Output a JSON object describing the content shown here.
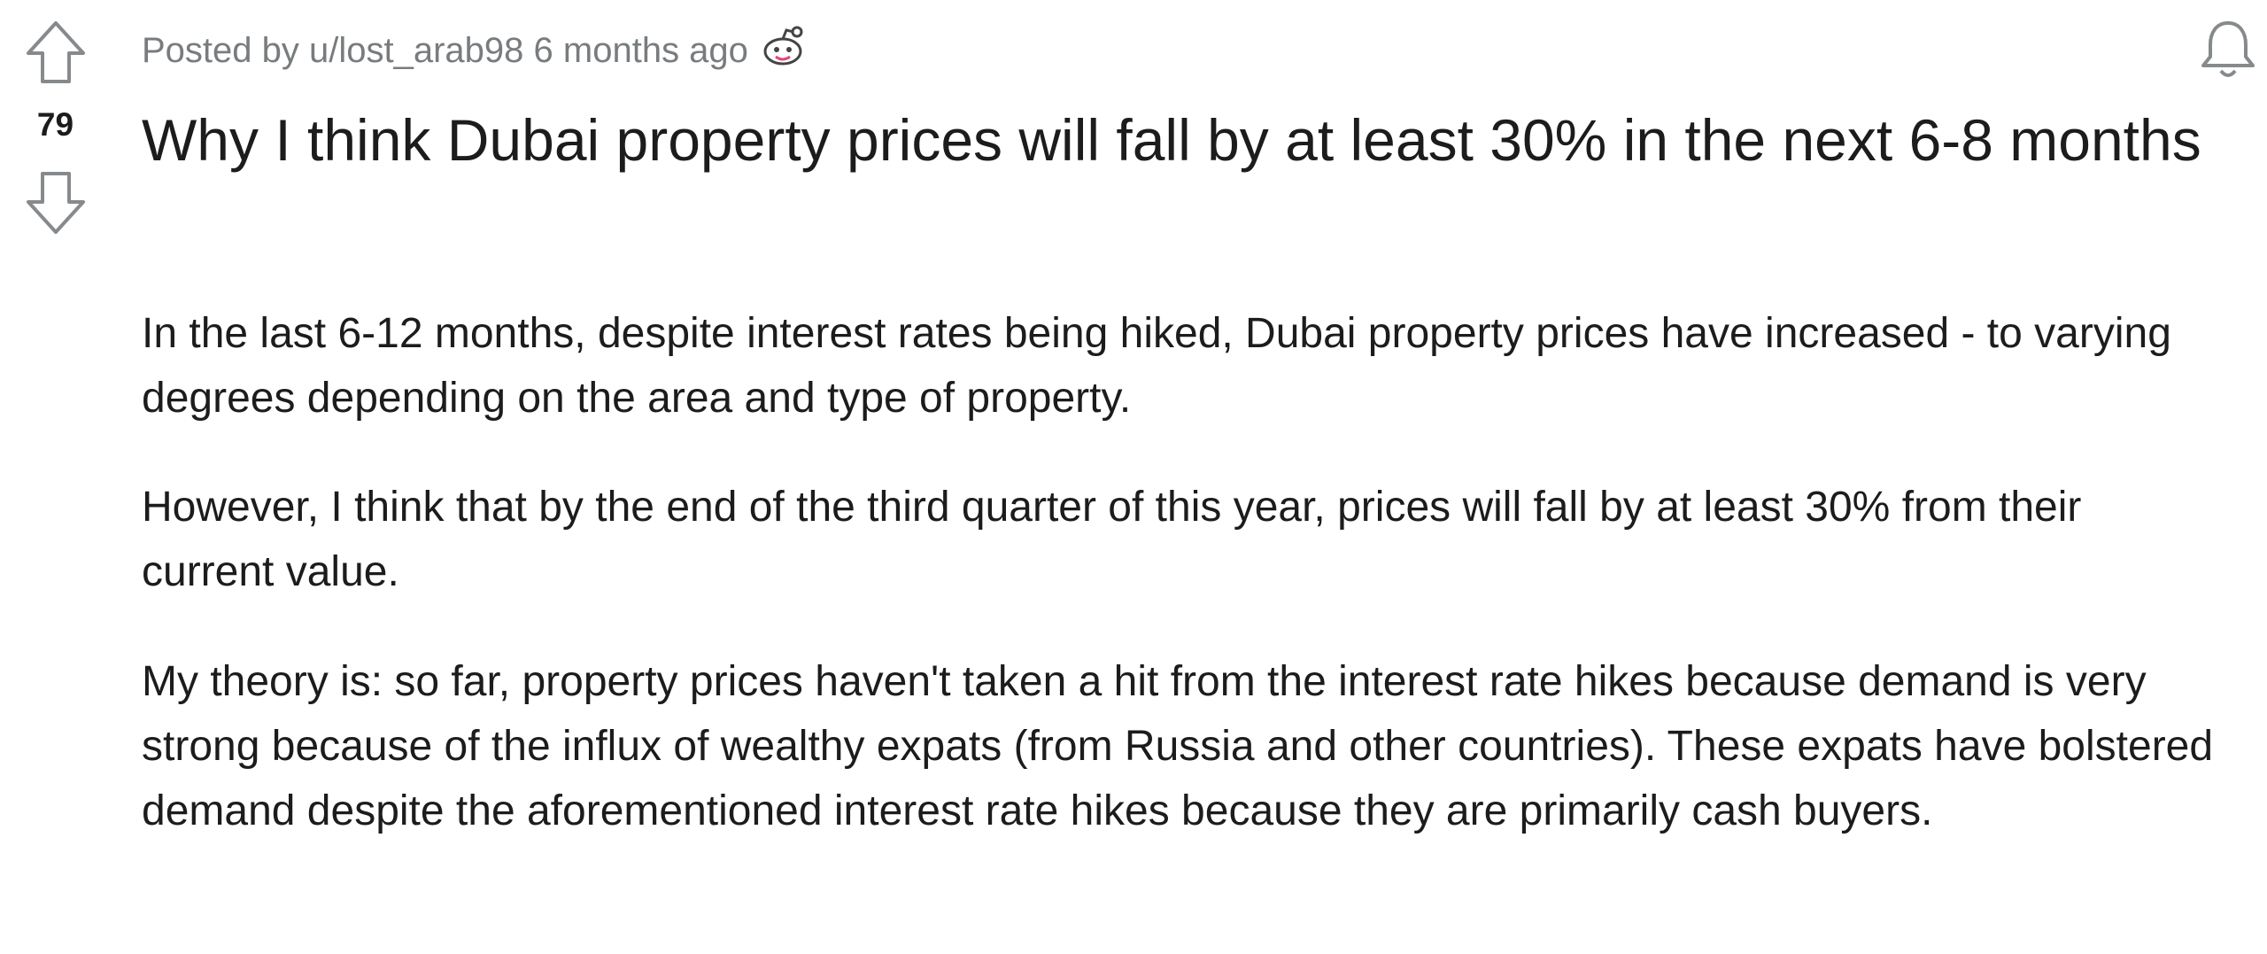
{
  "vote_count": 79,
  "header": {
    "posted_by": "Posted by u/lost_arab98",
    "time": "6 months ago"
  },
  "title": "Why I think Dubai property prices will fall by at least 30% in the next 6-8 months",
  "paragraphs": [
    "In the last 6-12 months, despite interest rates being hiked, Dubai property prices have increased - to varying degrees depending on the area and type of property.",
    "However, I think that by the end of the third quarter of this year, prices will fall by at least 30% from their current value.",
    "My theory is: so far, property prices haven't taken a hit from the interest rate hikes because demand is very strong because of the influx of wealthy expats (from Russia and other countries). These expats have bolstered demand despite the aforementioned interest rate hikes because they are primarily cash buyers."
  ]
}
